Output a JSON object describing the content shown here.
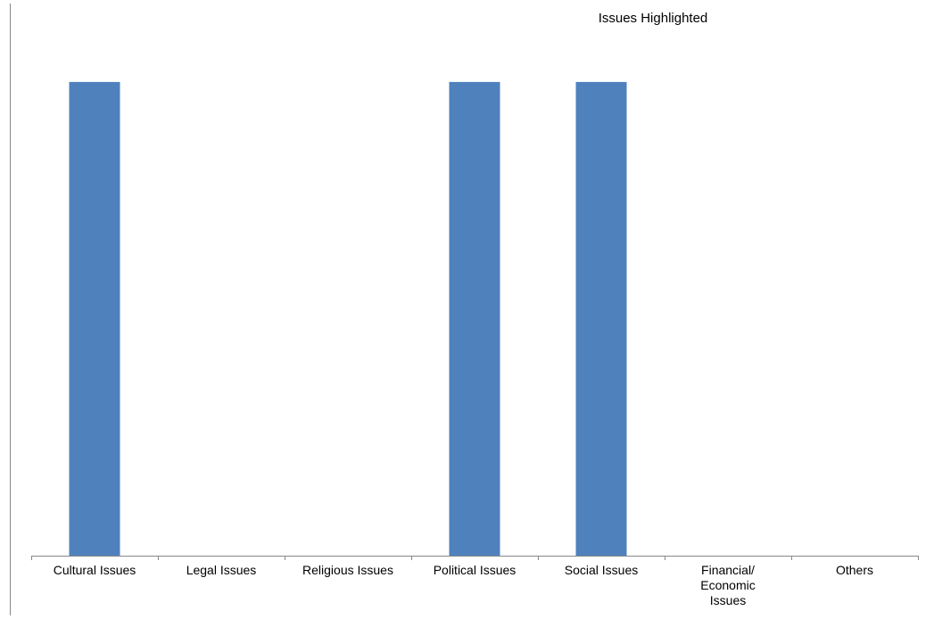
{
  "chart_data": {
    "type": "bar",
    "title": "Issues Highlighted",
    "categories": [
      [
        "Cultural Issues"
      ],
      [
        "Legal Issues"
      ],
      [
        "Religious Issues"
      ],
      [
        "Political Issues"
      ],
      [
        "Social Issues"
      ],
      [
        "Financial/",
        "Economic",
        "Issues"
      ],
      [
        "Others"
      ]
    ],
    "values": [
      1,
      0,
      0,
      1,
      1,
      0,
      0
    ],
    "ylim": [
      0,
      1.06
    ],
    "grid": false,
    "legend": "none",
    "bar_color": "#4f81bd",
    "axis_color": "#888888"
  }
}
